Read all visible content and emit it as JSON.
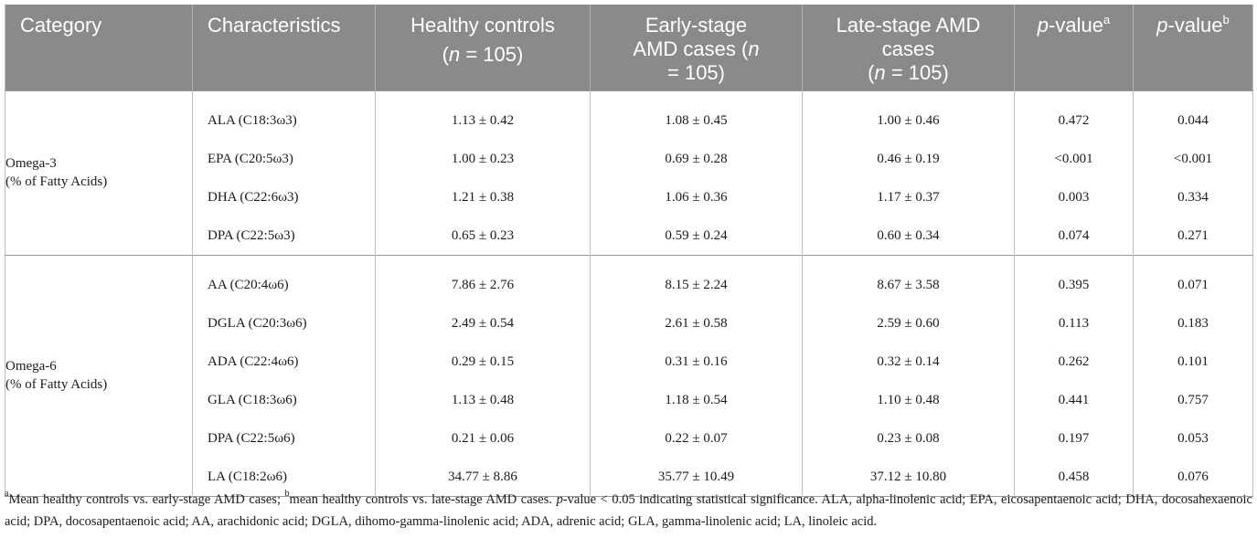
{
  "table": {
    "headers": {
      "category": "Category",
      "characteristics": "Characteristics",
      "healthy_line1": "Healthy controls",
      "healthy_line2_pre": "(",
      "healthy_line2_n": "n",
      "healthy_line2_post": " = 105)",
      "early_line1": "Early-stage",
      "early_line2": "AMD cases (",
      "early_line2_n": "n",
      "early_line3": "= 105)",
      "late_line1": "Late-stage AMD",
      "late_line2": "cases",
      "late_line3_pre": "(",
      "late_line3_n": "n",
      "late_line3_post": " = 105)",
      "pa_label": "p",
      "pa_rest": "-value",
      "pa_sup": "a",
      "pb_label": "p",
      "pb_rest": "-value",
      "pb_sup": "b"
    },
    "groups": [
      {
        "category_line1": "Omega-3",
        "category_line2": "(% of Fatty Acids)",
        "rows": [
          {
            "name": "ALA (C18:3ω3)",
            "healthy": "1.13 ± 0.42",
            "early": "1.08 ± 0.45",
            "late": "1.00 ± 0.46",
            "pa": "0.472",
            "pb": "0.044"
          },
          {
            "name": "EPA (C20:5ω3)",
            "healthy": "1.00 ± 0.23",
            "early": "0.69 ± 0.28",
            "late": "0.46 ± 0.19",
            "pa": "<0.001",
            "pb": "<0.001"
          },
          {
            "name": "DHA (C22:6ω3)",
            "healthy": "1.21 ± 0.38",
            "early": "1.06 ± 0.36",
            "late": "1.17 ± 0.37",
            "pa": "0.003",
            "pb": "0.334"
          },
          {
            "name": "DPA (C22:5ω3)",
            "healthy": "0.65 ± 0.23",
            "early": "0.59 ± 0.24",
            "late": "0.60 ± 0.34",
            "pa": "0.074",
            "pb": "0.271"
          }
        ]
      },
      {
        "category_line1": "Omega-6",
        "category_line2": "(% of Fatty Acids)",
        "rows": [
          {
            "name": "AA (C20:4ω6)",
            "healthy": "7.86 ± 2.76",
            "early": "8.15 ± 2.24",
            "late": "8.67 ± 3.58",
            "pa": "0.395",
            "pb": "0.071"
          },
          {
            "name": "DGLA (C20:3ω6)",
            "healthy": "2.49 ± 0.54",
            "early": "2.61 ± 0.58",
            "late": "2.59 ± 0.60",
            "pa": "0.113",
            "pb": "0.183"
          },
          {
            "name": "ADA (C22:4ω6)",
            "healthy": "0.29 ± 0.15",
            "early": "0.31 ± 0.16",
            "late": "0.32 ± 0.14",
            "pa": "0.262",
            "pb": "0.101"
          },
          {
            "name": "GLA (C18:3ω6)",
            "healthy": "1.13 ± 0.48",
            "early": "1.18 ± 0.54",
            "late": "1.10 ± 0.48",
            "pa": "0.441",
            "pb": "0.757"
          },
          {
            "name": "DPA (C22:5ω6)",
            "healthy": "0.21 ± 0.06",
            "early": "0.22 ± 0.07",
            "late": "0.23 ± 0.08",
            "pa": "0.197",
            "pb": "0.053"
          },
          {
            "name": "LA (C18:2ω6)",
            "healthy": "34.77 ± 8.86",
            "early": "35.77 ± 10.49",
            "late": "37.12 ± 10.80",
            "pa": "0.458",
            "pb": "0.076"
          }
        ]
      }
    ]
  },
  "footnote": {
    "sup_a": "a",
    "text_a": "Mean healthy controls vs. early-stage AMD cases; ",
    "sup_b": "b",
    "text_b": "mean healthy controls vs. late-stage AMD cases. ",
    "p_italic": "p",
    "text_c": "-value < 0.05 indicating statistical significance. ALA, alpha-linolenic acid; EPA, eicosapentaenoic acid; DHA, docosahexaenoic acid; DPA, docosapentaenoic acid; AA, arachidonic acid; DGLA, dihomo-gamma-linolenic acid; ADA, adrenic acid; GLA, gamma-linolenic acid; LA, linoleic acid."
  }
}
